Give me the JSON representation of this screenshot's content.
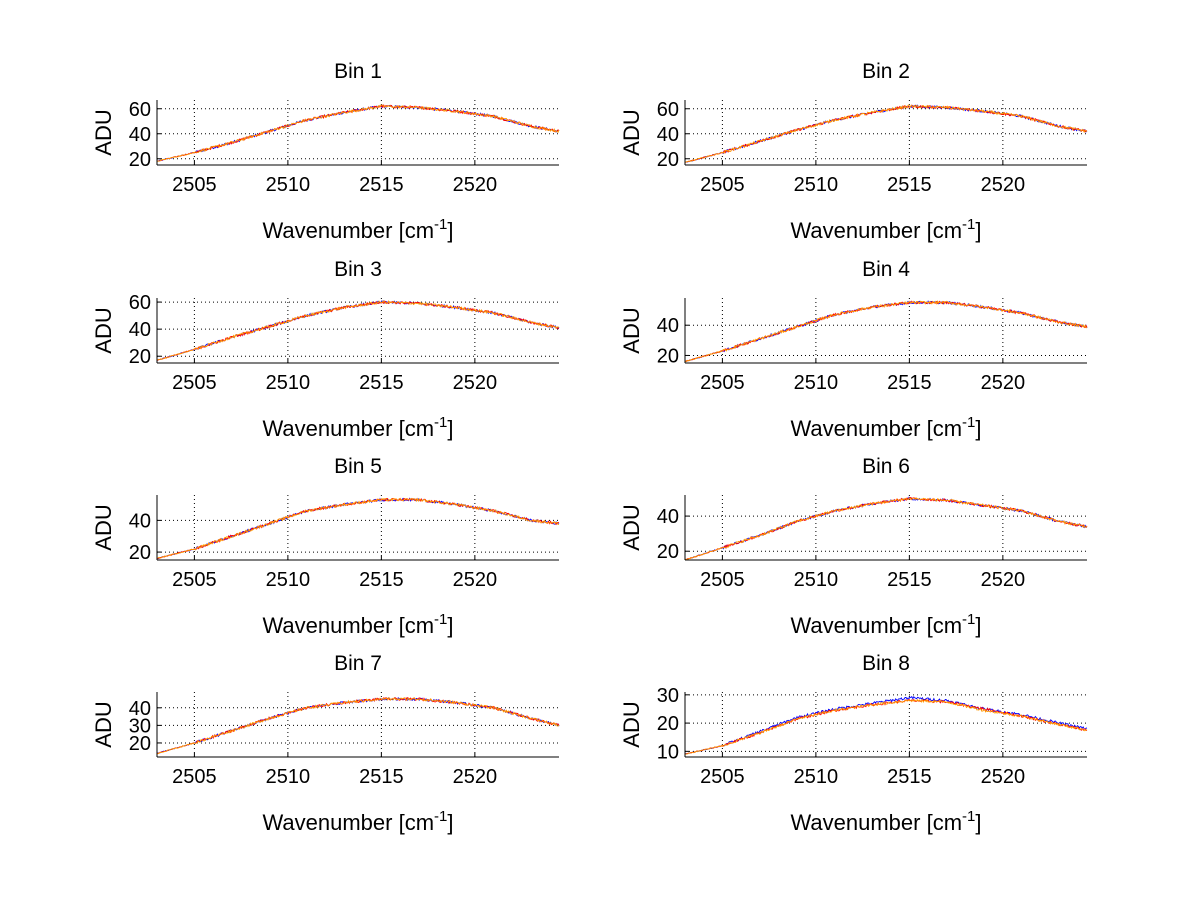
{
  "chart_data": [
    {
      "type": "line",
      "title": "Bin 1",
      "xlabel": "Wavenumber [cm",
      "xlabel_sup": "-1",
      "xlabel_end": "]",
      "ylabel": "ADU",
      "xlim": [
        2503,
        2524.5
      ],
      "ylim": [
        15,
        67
      ],
      "xticks": [
        2505,
        2510,
        2515,
        2520
      ],
      "yticks": [
        20,
        40,
        60
      ],
      "grid": true,
      "x": [
        2503,
        2505,
        2507,
        2509,
        2511,
        2513,
        2515,
        2517,
        2519,
        2521,
        2523,
        2524.5
      ],
      "series": [
        {
          "color": "#0000ff",
          "values": [
            18,
            25,
            33,
            42,
            51,
            57,
            62,
            61,
            58,
            54,
            46,
            42
          ]
        },
        {
          "color": "#ff0000",
          "values": [
            18,
            25,
            33,
            42,
            51,
            57,
            62,
            61,
            58,
            54,
            46,
            42
          ]
        },
        {
          "color": "#ff9900",
          "values": [
            18,
            25,
            33,
            42,
            51,
            57,
            62,
            61,
            58,
            54,
            46,
            42
          ]
        }
      ]
    },
    {
      "type": "line",
      "title": "Bin 2",
      "xlabel": "Wavenumber [cm",
      "xlabel_sup": "-1",
      "xlabel_end": "]",
      "ylabel": "ADU",
      "xlim": [
        2503,
        2524.5
      ],
      "ylim": [
        15,
        67
      ],
      "xticks": [
        2505,
        2510,
        2515,
        2520
      ],
      "yticks": [
        20,
        40,
        60
      ],
      "grid": true,
      "x": [
        2503,
        2505,
        2507,
        2509,
        2511,
        2513,
        2515,
        2517,
        2519,
        2521,
        2523,
        2524.5
      ],
      "series": [
        {
          "color": "#0000ff",
          "values": [
            17,
            25,
            34,
            43,
            51,
            57,
            62,
            61,
            58,
            54,
            46,
            42
          ]
        },
        {
          "color": "#ff0000",
          "values": [
            17,
            25,
            34,
            43,
            51,
            57,
            62,
            61,
            58,
            54,
            46,
            42
          ]
        },
        {
          "color": "#ff9900",
          "values": [
            17,
            25,
            34,
            43,
            51,
            57,
            62,
            61,
            58,
            54,
            46,
            42
          ]
        }
      ]
    },
    {
      "type": "line",
      "title": "Bin 3",
      "xlabel": "Wavenumber [cm",
      "xlabel_sup": "-1",
      "xlabel_end": "]",
      "ylabel": "ADU",
      "xlim": [
        2503,
        2524.5
      ],
      "ylim": [
        15,
        63
      ],
      "xticks": [
        2505,
        2510,
        2515,
        2520
      ],
      "yticks": [
        20,
        40,
        60
      ],
      "grid": true,
      "x": [
        2503,
        2505,
        2507,
        2509,
        2511,
        2513,
        2515,
        2517,
        2519,
        2521,
        2523,
        2524.5
      ],
      "series": [
        {
          "color": "#0000ff",
          "values": [
            17,
            25,
            34,
            42,
            50,
            56,
            60,
            59,
            56,
            52,
            45,
            41
          ]
        },
        {
          "color": "#ff0000",
          "values": [
            17,
            25,
            34,
            42,
            50,
            56,
            60,
            59,
            56,
            52,
            45,
            41
          ]
        },
        {
          "color": "#ff9900",
          "values": [
            17,
            25,
            34,
            42,
            50,
            56,
            60,
            59,
            56,
            52,
            45,
            41
          ]
        }
      ]
    },
    {
      "type": "line",
      "title": "Bin 4",
      "xlabel": "Wavenumber [cm",
      "xlabel_sup": "-1",
      "xlabel_end": "]",
      "ylabel": "ADU",
      "xlim": [
        2503,
        2524.5
      ],
      "ylim": [
        15,
        58
      ],
      "xticks": [
        2505,
        2510,
        2515,
        2520
      ],
      "yticks": [
        20,
        40
      ],
      "grid": true,
      "x": [
        2503,
        2505,
        2507,
        2509,
        2511,
        2513,
        2515,
        2517,
        2519,
        2521,
        2523,
        2524.5
      ],
      "series": [
        {
          "color": "#0000ff",
          "values": [
            16,
            23,
            31,
            39,
            47,
            52,
            55,
            55,
            52,
            48,
            42,
            39
          ]
        },
        {
          "color": "#ff0000",
          "values": [
            16,
            23,
            31,
            39,
            47,
            52,
            55,
            55,
            52,
            48,
            42,
            39
          ]
        },
        {
          "color": "#ff9900",
          "values": [
            16,
            23,
            31,
            39,
            47,
            52,
            55,
            55,
            52,
            48,
            42,
            39
          ]
        }
      ]
    },
    {
      "type": "line",
      "title": "Bin 5",
      "xlabel": "Wavenumber [cm",
      "xlabel_sup": "-1",
      "xlabel_end": "]",
      "ylabel": "ADU",
      "xlim": [
        2503,
        2524.5
      ],
      "ylim": [
        15,
        56
      ],
      "xticks": [
        2505,
        2510,
        2515,
        2520
      ],
      "yticks": [
        20,
        40
      ],
      "grid": true,
      "x": [
        2503,
        2505,
        2507,
        2509,
        2511,
        2513,
        2515,
        2517,
        2519,
        2521,
        2523,
        2524.5
      ],
      "series": [
        {
          "color": "#0000ff",
          "values": [
            16,
            22,
            30,
            38,
            46,
            50,
            53,
            53,
            50,
            46,
            40,
            38
          ]
        },
        {
          "color": "#ff0000",
          "values": [
            16,
            22,
            30,
            38,
            46,
            50,
            53,
            53,
            50,
            46,
            40,
            38
          ]
        },
        {
          "color": "#ff9900",
          "values": [
            16,
            22,
            30,
            38,
            46,
            50,
            53,
            53,
            50,
            46,
            40,
            38
          ]
        }
      ]
    },
    {
      "type": "line",
      "title": "Bin 6",
      "xlabel": "Wavenumber [cm",
      "xlabel_sup": "-1",
      "xlabel_end": "]",
      "ylabel": "ADU",
      "xlim": [
        2503,
        2524.5
      ],
      "ylim": [
        15,
        52
      ],
      "xticks": [
        2505,
        2510,
        2515,
        2520
      ],
      "yticks": [
        20,
        40
      ],
      "grid": true,
      "x": [
        2503,
        2505,
        2507,
        2509,
        2511,
        2513,
        2515,
        2517,
        2519,
        2521,
        2523,
        2524.5
      ],
      "series": [
        {
          "color": "#0000ff",
          "values": [
            15,
            22,
            29,
            37,
            43,
            47,
            50,
            49,
            46,
            43,
            37,
            34
          ]
        },
        {
          "color": "#ff0000",
          "values": [
            15,
            22,
            29,
            37,
            43,
            47,
            50,
            49,
            46,
            43,
            37,
            34
          ]
        },
        {
          "color": "#ff9900",
          "values": [
            15,
            22,
            29,
            37,
            43,
            47,
            50,
            49,
            46,
            43,
            37,
            34
          ]
        }
      ]
    },
    {
      "type": "line",
      "title": "Bin 7",
      "xlabel": "Wavenumber [cm",
      "xlabel_sup": "-1",
      "xlabel_end": "]",
      "ylabel": "ADU",
      "xlim": [
        2503,
        2524.5
      ],
      "ylim": [
        12,
        49
      ],
      "xticks": [
        2505,
        2510,
        2515,
        2520
      ],
      "yticks": [
        20,
        30,
        40
      ],
      "grid": true,
      "x": [
        2503,
        2505,
        2507,
        2509,
        2511,
        2513,
        2515,
        2517,
        2519,
        2521,
        2523,
        2524.5
      ],
      "series": [
        {
          "color": "#0000ff",
          "values": [
            14,
            20,
            27,
            34,
            40,
            43,
            45,
            45,
            43,
            40,
            34,
            30
          ]
        },
        {
          "color": "#ff0000",
          "values": [
            14,
            20,
            27,
            34,
            40,
            43,
            45,
            45,
            43,
            40,
            34,
            30
          ]
        },
        {
          "color": "#ff9900",
          "values": [
            14,
            20,
            27,
            34,
            40,
            43,
            45,
            45,
            43,
            40,
            34,
            30
          ]
        }
      ]
    },
    {
      "type": "line",
      "title": "Bin 8",
      "xlabel": "Wavenumber [cm",
      "xlabel_sup": "-1",
      "xlabel_end": "]",
      "ylabel": "ADU",
      "xlim": [
        2503,
        2524.5
      ],
      "ylim": [
        8,
        31
      ],
      "xticks": [
        2505,
        2510,
        2515,
        2520
      ],
      "yticks": [
        10,
        20,
        30
      ],
      "grid": true,
      "x": [
        2503,
        2505,
        2507,
        2509,
        2511,
        2513,
        2515,
        2517,
        2519,
        2521,
        2523,
        2524.5
      ],
      "series": [
        {
          "color": "#0000ff",
          "values": [
            9,
            12,
            17,
            22,
            25,
            27,
            29,
            28,
            25,
            23,
            20,
            18
          ]
        },
        {
          "color": "#ff0000",
          "values": [
            9,
            12,
            16.5,
            21.5,
            24.5,
            26.5,
            28,
            27.5,
            25,
            22.5,
            19.5,
            17.5
          ]
        },
        {
          "color": "#ff9900",
          "values": [
            9,
            12,
            16.5,
            21.5,
            24.5,
            26.5,
            28,
            27.5,
            24.5,
            22.5,
            19.5,
            17.5
          ]
        }
      ]
    }
  ]
}
